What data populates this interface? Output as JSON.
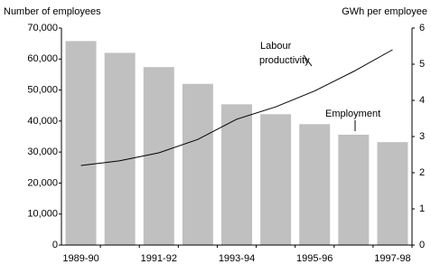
{
  "chart_data": {
    "type": "bar_line",
    "y_title": "Number of employees",
    "y2_title": "GWh per employee",
    "categories": [
      "1989-90",
      null,
      "1991-92",
      null,
      "1993-94",
      null,
      "1995-96",
      null,
      "1997-98"
    ],
    "series": [
      {
        "name": "Employment",
        "type": "bar",
        "color": "#c0c0c0",
        "values": [
          65800,
          62000,
          57400,
          52000,
          45400,
          42200,
          39000,
          35600,
          33200
        ]
      },
      {
        "name": "Labour productivity",
        "type": "line",
        "color": "#000000",
        "axis": "y2",
        "values": [
          2.2,
          2.33,
          2.55,
          2.92,
          3.48,
          3.82,
          4.26,
          4.8,
          5.4
        ]
      }
    ],
    "ylim": [
      0,
      70000
    ],
    "yticks": [
      0,
      {
        "value": 10000,
        "label": "10,000"
      },
      {
        "value": 20000,
        "label": "20,000"
      },
      {
        "value": 30000,
        "label": "30,000"
      },
      {
        "value": 40000,
        "label": "40,000"
      },
      {
        "value": 50000,
        "label": "50,000"
      },
      {
        "value": 60000,
        "label": "60,000"
      },
      {
        "value": 70000,
        "label": "70,000"
      }
    ],
    "y2lim": [
      0,
      6
    ],
    "y2ticks": [
      0,
      1,
      2,
      3,
      4,
      5,
      6
    ]
  }
}
